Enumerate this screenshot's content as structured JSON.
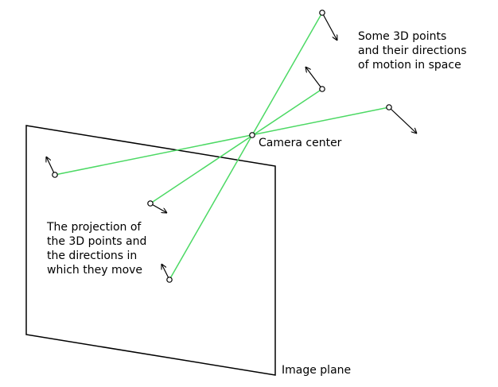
{
  "labels": {
    "points_note": [
      "Some 3D points",
      "and their directions",
      "of motion in space"
    ],
    "camera_center": "Camera center",
    "projection_note": [
      "The projection of",
      "the 3D points and",
      "the directions in",
      "which they move"
    ],
    "image_plane": "Image plane"
  },
  "colors": {
    "ray": "#4cd964",
    "outline": "#000000",
    "background": "#ffffff"
  }
}
